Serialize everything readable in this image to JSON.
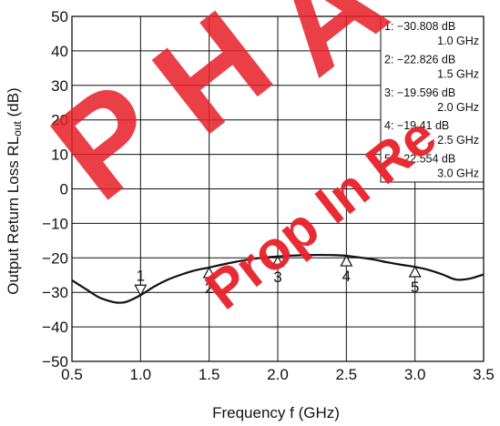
{
  "chart_data": {
    "type": "line",
    "xlabel": "Frequency  f (GHz)",
    "ylabel_main": "Output Return Loss  RL",
    "ylabel_sub": "out",
    "ylabel_unit": " (dB)",
    "xlim": [
      0.5,
      3.5
    ],
    "ylim": [
      -50,
      50
    ],
    "xticks": [
      0.5,
      1.0,
      1.5,
      2.0,
      2.5,
      3.0,
      3.5
    ],
    "xtick_labels": [
      "0.5",
      "1.0",
      "1.5",
      "2.0",
      "2.5",
      "3.0",
      "3.5"
    ],
    "yticks": [
      50,
      40,
      30,
      20,
      10,
      0,
      -10,
      -20,
      -30,
      -40,
      -50
    ],
    "ytick_labels": [
      "50",
      "40",
      "30",
      "20",
      "10",
      "0",
      "−10",
      "−20",
      "−30",
      "−40",
      "−50"
    ],
    "grid": true,
    "series": [
      {
        "x": [
          0.5,
          0.6,
          0.7,
          0.8,
          0.85,
          0.9,
          1.0,
          1.1,
          1.2,
          1.3,
          1.4,
          1.5,
          1.6,
          1.7,
          1.8,
          1.9,
          2.0,
          2.1,
          2.2,
          2.3,
          2.4,
          2.5,
          2.6,
          2.7,
          2.8,
          2.9,
          3.0,
          3.1,
          3.2,
          3.3,
          3.4,
          3.5
        ],
        "y": [
          -26.5,
          -29.0,
          -31.5,
          -32.8,
          -33.0,
          -32.7,
          -30.8,
          -28.3,
          -26.3,
          -24.8,
          -23.6,
          -22.8,
          -21.9,
          -21.1,
          -20.4,
          -19.9,
          -19.6,
          -19.35,
          -19.2,
          -19.15,
          -19.2,
          -19.4,
          -19.9,
          -20.5,
          -21.3,
          -22.0,
          -22.6,
          -23.5,
          -24.8,
          -26.3,
          -26.0,
          -24.8
        ]
      }
    ],
    "markers": [
      {
        "id": "1",
        "x": 1.0,
        "y": -30.808,
        "direction": "down",
        "value_text": "1: −30.808 dB",
        "freq_text": "1.0 GHz"
      },
      {
        "id": "2",
        "x": 1.5,
        "y": -22.826,
        "direction": "up",
        "value_text": "2: −22.826 dB",
        "freq_text": "1.5 GHz"
      },
      {
        "id": "3",
        "x": 2.0,
        "y": -19.596,
        "direction": "up",
        "value_text": "3: −19.596 dB",
        "freq_text": "2.0 GHz"
      },
      {
        "id": "4",
        "x": 2.5,
        "y": -19.41,
        "direction": "up",
        "value_text": "4: −19.41   dB",
        "freq_text": "2.5 GHz"
      },
      {
        "id": "5",
        "x": 3.0,
        "y": -22.554,
        "direction": "up",
        "value_text": "5: −22.554 dB",
        "freq_text": "3.0 GHz"
      }
    ]
  },
  "watermark": {
    "text": "PHA Prop In Re",
    "color": "#e8202a"
  },
  "colors": {
    "trace": "#111111",
    "grid": "#111111",
    "background": "#ffffff"
  }
}
